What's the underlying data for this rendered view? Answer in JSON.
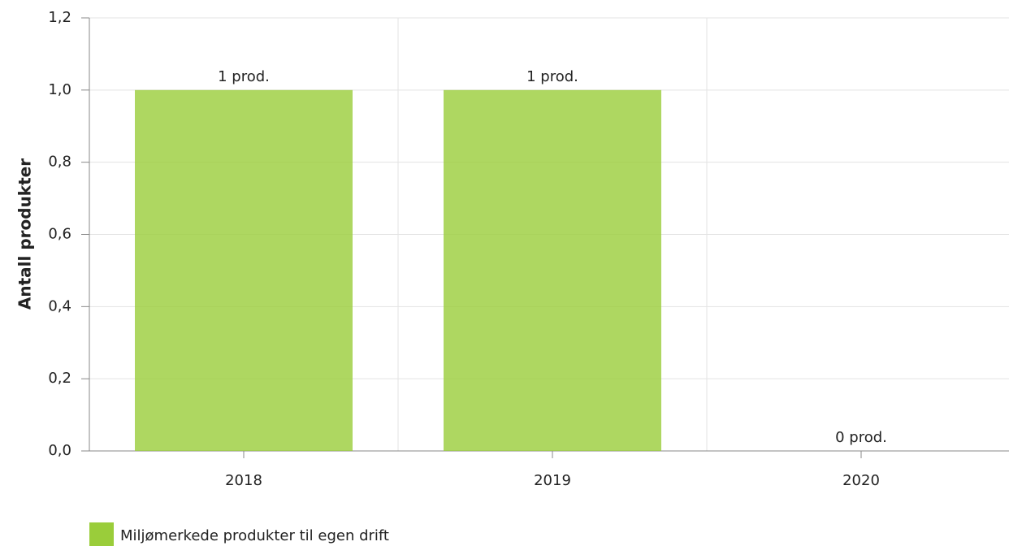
{
  "chart_data": {
    "type": "bar",
    "y_label": "Antall produkter",
    "categories": [
      "2018",
      "2019",
      "2020"
    ],
    "series": [
      {
        "name": "Miljømerkede produkter til egen drift",
        "color": "#9acd3a",
        "values": [
          1,
          1,
          0
        ],
        "value_labels": [
          "1 prod.",
          "1 prod.",
          "0 prod."
        ]
      }
    ],
    "ylim": [
      0,
      1.2
    ],
    "yticks": [
      {
        "value": 0,
        "label": "0,0"
      },
      {
        "value": 0.2,
        "label": "0,2"
      },
      {
        "value": 0.4,
        "label": "0,4"
      },
      {
        "value": 0.6,
        "label": "0,6"
      },
      {
        "value": 0.8,
        "label": "0,8"
      },
      {
        "value": 1,
        "label": "1,0"
      },
      {
        "value": 1.2,
        "label": "1,2"
      }
    ],
    "grid": true
  }
}
